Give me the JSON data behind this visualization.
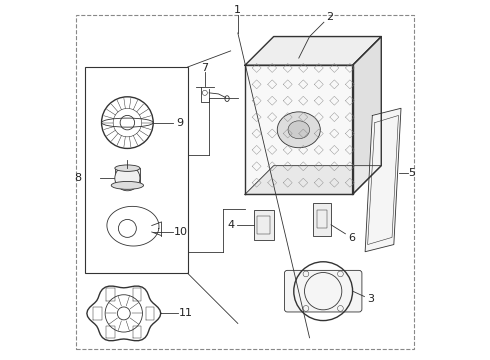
{
  "bg_color": "#ffffff",
  "line_color": "#333333",
  "label_color": "#222222",
  "fig_width": 4.9,
  "fig_height": 3.6,
  "dpi": 100
}
